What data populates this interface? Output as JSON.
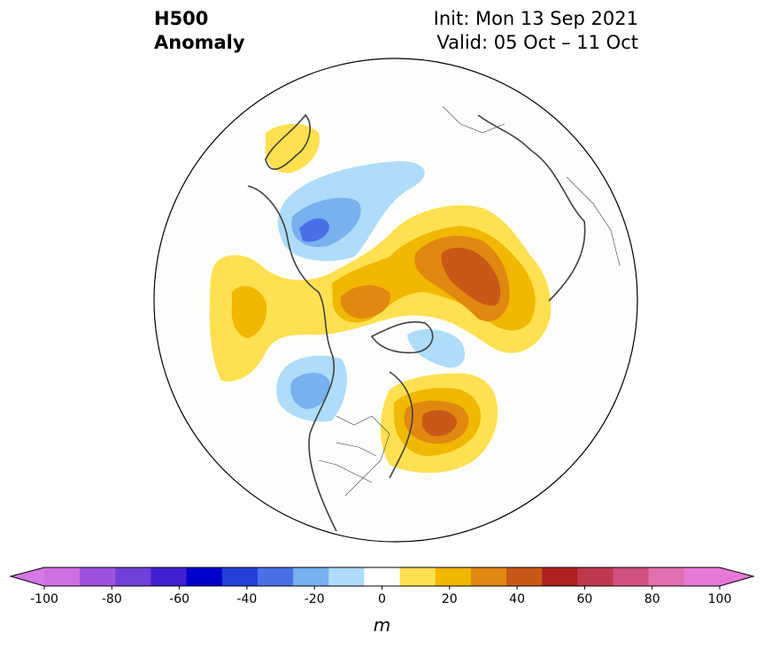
{
  "title": {
    "variable": "H500",
    "quantity": "Anomaly",
    "init": "Init: Mon 13 Sep 2021",
    "valid": "Valid: 05 Oct – 11 Oct"
  },
  "map": {
    "projection": "north-polar-stereographic",
    "coastline_color": "#404040",
    "border_color": "#404040"
  },
  "colorbar": {
    "unit": "m",
    "extend": "both",
    "levels": [
      -100,
      -90,
      -80,
      -70,
      -60,
      -50,
      -40,
      -30,
      -20,
      -10,
      10,
      20,
      30,
      40,
      50,
      60,
      70,
      80,
      90,
      100
    ],
    "colors": [
      "#d070e0",
      "#a050e0",
      "#7040d8",
      "#4020d0",
      "#0000cc",
      "#2040d8",
      "#4a70e8",
      "#78b0f0",
      "#aedcfa",
      "#ffffff",
      "#ffe050",
      "#f0b800",
      "#e08810",
      "#c85818",
      "#b02020",
      "#c03850",
      "#d05080",
      "#e070b0",
      "#e878d8"
    ],
    "low_extend_color": "#d878e8",
    "high_extend_color": "#e878d8",
    "ticks": [
      "-100",
      "-80",
      "-60",
      "-40",
      "-20",
      "0",
      "20",
      "40",
      "60",
      "80",
      "100"
    ],
    "tick_values": [
      -100,
      -80,
      -60,
      -40,
      -20,
      0,
      20,
      40,
      60,
      80,
      100
    ]
  },
  "anomaly_features": [
    {
      "name": "positive-center-siberia",
      "peak_m": 45
    },
    {
      "name": "positive-center-eastern-canada",
      "peak_m": 45
    },
    {
      "name": "positive-center-east-atlantic",
      "peak_m": 35
    },
    {
      "name": "positive-center-north-pacific",
      "peak_m": 25
    },
    {
      "name": "negative-center-east-asia",
      "peak_m": -30
    },
    {
      "name": "negative-center-gulf-of-alaska",
      "peak_m": -30
    },
    {
      "name": "negative-center-arctic",
      "peak_m": -20
    }
  ]
}
